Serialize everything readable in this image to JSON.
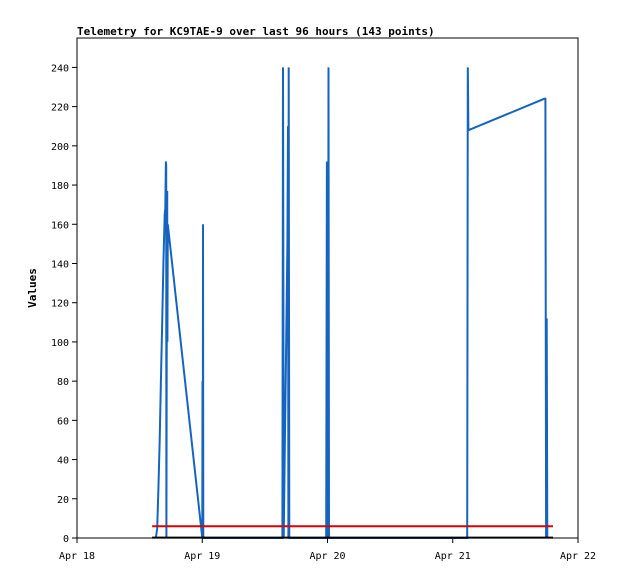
{
  "chart_data": {
    "type": "line",
    "title": "Telemetry for KC9TAE-9 over last 96 hours (143 points)",
    "xlabel": "",
    "ylabel": "Values",
    "x_ticks": [
      "Apr 18",
      "Apr 19",
      "Apr 20",
      "Apr 21",
      "Apr 22"
    ],
    "xlim": [
      0,
      4
    ],
    "ylim": [
      0,
      255
    ],
    "y_ticks": [
      0,
      20,
      40,
      60,
      80,
      100,
      120,
      140,
      160,
      180,
      200,
      220,
      240
    ],
    "grid": false,
    "series": [
      {
        "color": "#1565c0",
        "points": [
          [
            0.63,
            0
          ],
          [
            0.64,
            5
          ],
          [
            0.65,
            25
          ],
          [
            0.66,
            50
          ],
          [
            0.67,
            80
          ],
          [
            0.68,
            110
          ],
          [
            0.69,
            140
          ],
          [
            0.7,
            165
          ],
          [
            0.705,
            168
          ],
          [
            0.71,
            192
          ],
          [
            0.712,
            190
          ],
          [
            0.714,
            0
          ],
          [
            0.716,
            90
          ],
          [
            0.72,
            177
          ],
          [
            0.722,
            100
          ],
          [
            0.725,
            160
          ],
          [
            1.0,
            0
          ],
          [
            1.002,
            80
          ],
          [
            1.004,
            0
          ],
          [
            1.006,
            160
          ],
          [
            1.008,
            0
          ],
          [
            1.64,
            0
          ],
          [
            1.645,
            240
          ],
          [
            1.648,
            120
          ],
          [
            1.65,
            0
          ],
          [
            1.66,
            50
          ],
          [
            1.67,
            100
          ],
          [
            1.68,
            150
          ],
          [
            1.685,
            210
          ],
          [
            1.688,
            0
          ],
          [
            1.69,
            240
          ],
          [
            1.695,
            0
          ],
          [
            1.99,
            0
          ],
          [
            1.995,
            192
          ],
          [
            1.998,
            0
          ],
          [
            2.0,
            88
          ],
          [
            2.004,
            0
          ],
          [
            2.008,
            240
          ],
          [
            2.012,
            0
          ],
          [
            3.115,
            0
          ],
          [
            3.12,
            240
          ],
          [
            3.125,
            208
          ],
          [
            3.73,
            224
          ],
          [
            3.74,
            224
          ],
          [
            3.745,
            0
          ],
          [
            3.75,
            112
          ],
          [
            3.755,
            0
          ]
        ]
      },
      {
        "color": "#e00000",
        "points": [
          [
            0.6,
            6
          ],
          [
            3.8,
            6
          ]
        ]
      },
      {
        "color": "#000000",
        "points": [
          [
            0.6,
            0.2
          ],
          [
            3.8,
            0.2
          ]
        ]
      }
    ]
  }
}
